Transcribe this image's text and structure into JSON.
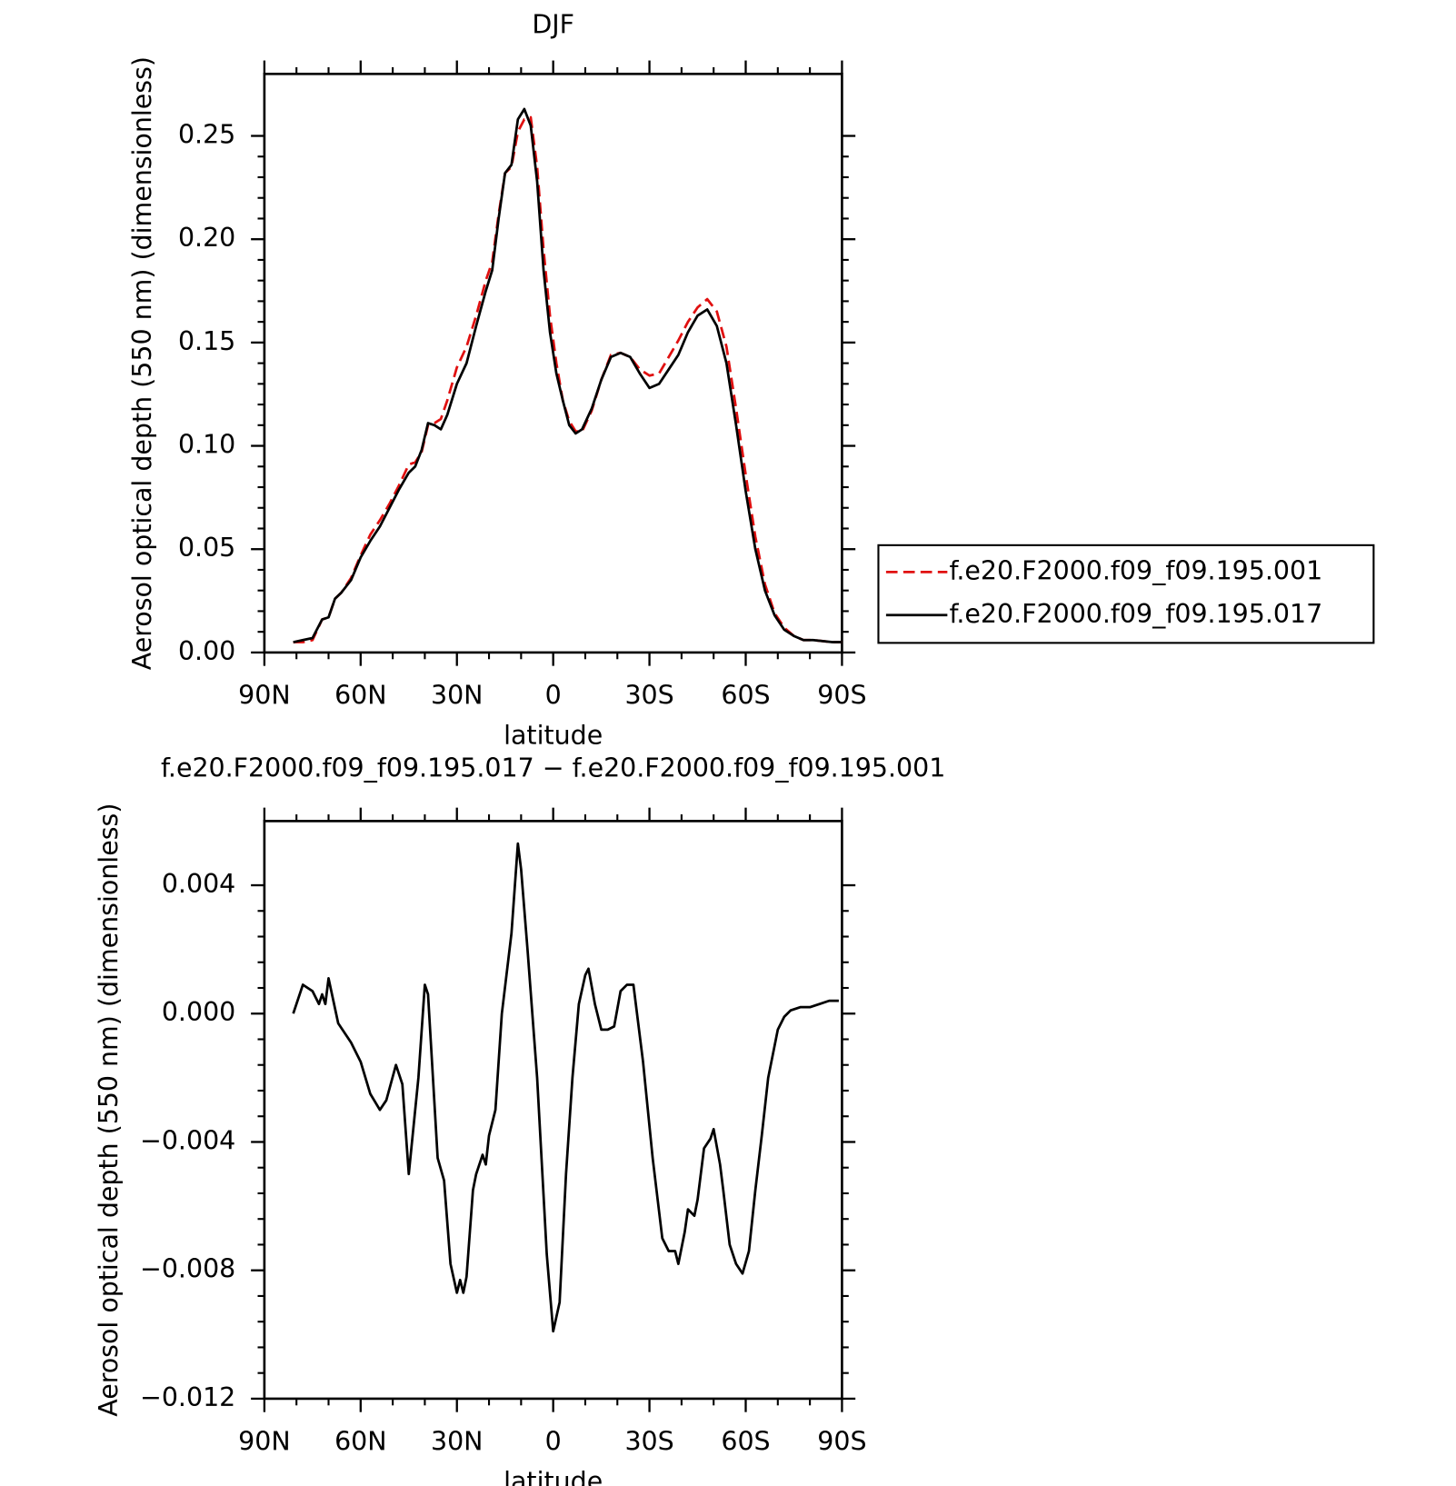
{
  "chart_data": [
    {
      "type": "line",
      "title": "DJF",
      "ylabel": "Aerosol optical depth (550 nm) (dimensionless)",
      "xlabel": "latitude",
      "xlim": [
        90,
        -90
      ],
      "xticks": [
        {
          "value": 90,
          "label": "90N"
        },
        {
          "value": 60,
          "label": "60N"
        },
        {
          "value": 30,
          "label": "30N"
        },
        0,
        {
          "value": -30,
          "label": "30S"
        },
        {
          "value": -60,
          "label": "60S"
        },
        {
          "value": -90,
          "label": "90S"
        }
      ],
      "ylim": [
        0,
        0.28
      ],
      "yticks": [
        {
          "value": 0,
          "label": "0.00"
        },
        {
          "value": 0.05,
          "label": "0.05"
        },
        {
          "value": 0.1,
          "label": "0.10"
        },
        {
          "value": 0.15,
          "label": "0.15"
        },
        {
          "value": 0.2,
          "label": "0.20"
        },
        0.25
      ],
      "legend": "right",
      "x": [
        81,
        78,
        75,
        72,
        70,
        68,
        66,
        63,
        60,
        57,
        54,
        51,
        48,
        45,
        43,
        41,
        39,
        37,
        35,
        33,
        30,
        27,
        24,
        21,
        19,
        17,
        15,
        13,
        11,
        9,
        7,
        5,
        3,
        1,
        -1,
        -3,
        -5,
        -7,
        -9,
        -12,
        -15,
        -18,
        -21,
        -24,
        -27,
        -30,
        -33,
        -36,
        -39,
        -42,
        -45,
        -48,
        -51,
        -54,
        -57,
        -60,
        -63,
        -66,
        -69,
        -72,
        -75,
        -78,
        -81,
        -84,
        -87,
        -90
      ],
      "series": [
        {
          "name": "f.e20.F2000.f09_f09.195.001",
          "color": "#e01010",
          "dash": "dashed",
          "values": [
            0.005,
            0.005,
            0.006,
            0.016,
            0.017,
            0.026,
            0.029,
            0.036,
            0.047,
            0.057,
            0.064,
            0.072,
            0.081,
            0.091,
            0.092,
            0.097,
            0.11,
            0.111,
            0.113,
            0.122,
            0.138,
            0.148,
            0.163,
            0.18,
            0.189,
            0.212,
            0.232,
            0.235,
            0.252,
            0.258,
            0.259,
            0.235,
            0.195,
            0.163,
            0.14,
            0.122,
            0.112,
            0.107,
            0.107,
            0.117,
            0.132,
            0.144,
            0.145,
            0.143,
            0.137,
            0.134,
            0.135,
            0.143,
            0.151,
            0.16,
            0.167,
            0.171,
            0.165,
            0.148,
            0.118,
            0.086,
            0.056,
            0.033,
            0.019,
            0.012,
            0.008,
            0.006,
            0.006,
            0.0055,
            0.005,
            0.005
          ]
        },
        {
          "name": "f.e20.F2000.f09_f09.195.017",
          "color": "#000000",
          "dash": "solid",
          "values": [
            0.005,
            0.006,
            0.007,
            0.016,
            0.017,
            0.026,
            0.029,
            0.035,
            0.046,
            0.054,
            0.061,
            0.07,
            0.079,
            0.087,
            0.09,
            0.098,
            0.111,
            0.11,
            0.108,
            0.115,
            0.13,
            0.14,
            0.158,
            0.175,
            0.185,
            0.21,
            0.232,
            0.236,
            0.258,
            0.263,
            0.255,
            0.228,
            0.185,
            0.155,
            0.135,
            0.122,
            0.11,
            0.106,
            0.108,
            0.118,
            0.132,
            0.143,
            0.145,
            0.143,
            0.135,
            0.128,
            0.13,
            0.137,
            0.144,
            0.155,
            0.163,
            0.166,
            0.158,
            0.14,
            0.11,
            0.078,
            0.05,
            0.03,
            0.018,
            0.011,
            0.008,
            0.006,
            0.006,
            0.0055,
            0.005,
            0.005
          ]
        }
      ]
    },
    {
      "type": "line",
      "title": "f.e20.F2000.f09_f09.195.017 − f.e20.F2000.f09_f09.195.001",
      "ylabel": "Aerosol optical depth (550 nm) (dimensionless)",
      "xlabel": "latitude",
      "xlim": [
        90,
        -90
      ],
      "xticks": [
        {
          "value": 90,
          "label": "90N"
        },
        {
          "value": 60,
          "label": "60N"
        },
        {
          "value": 30,
          "label": "30N"
        },
        0,
        {
          "value": -30,
          "label": "30S"
        },
        {
          "value": -60,
          "label": "60S"
        },
        {
          "value": -90,
          "label": "90S"
        }
      ],
      "ylim": [
        -0.012,
        0.006
      ],
      "yticks": [
        {
          "value": -0.012,
          "label": "−0.012"
        },
        {
          "value": -0.008,
          "label": "−0.008"
        },
        {
          "value": -0.004,
          "label": "−0.004"
        },
        {
          "value": 0,
          "label": "0.000"
        },
        0.004
      ],
      "x": [
        81,
        78,
        75,
        73,
        72,
        71,
        70,
        67,
        63,
        60,
        57,
        54,
        52,
        49,
        47,
        45,
        42,
        40,
        39,
        36,
        34,
        32,
        30,
        29,
        28,
        27,
        25,
        24,
        22,
        21,
        20,
        18,
        16,
        13,
        11,
        10,
        8,
        5,
        2,
        0,
        -2,
        -4,
        -6,
        -8,
        -10,
        -11,
        -13,
        -15,
        -17,
        -19,
        -21,
        -23,
        -25,
        -28,
        -31,
        -34,
        -36,
        -38,
        -39,
        -41,
        -42,
        -44,
        -45,
        -47,
        -49,
        -50,
        -52,
        -53,
        -55,
        -57,
        -59,
        -61,
        -63,
        -65,
        -67,
        -70,
        -72,
        -74,
        -77,
        -80,
        -83,
        -86,
        -89
      ],
      "color": "#000000",
      "values": [
        0,
        0.0009,
        0.0007,
        0.0003,
        0.0006,
        0.0003,
        0.0011,
        -0.0003,
        -0.0009,
        -0.0015,
        -0.0025,
        -0.003,
        -0.0027,
        -0.0016,
        -0.0022,
        -0.005,
        -0.002,
        0.0009,
        0.0006,
        -0.0045,
        -0.0052,
        -0.0078,
        -0.0087,
        -0.0083,
        -0.0087,
        -0.0082,
        -0.0055,
        -0.005,
        -0.0044,
        -0.0047,
        -0.0038,
        -0.003,
        0,
        0.0025,
        0.0053,
        0.0045,
        0.002,
        -0.002,
        -0.0075,
        -0.0099,
        -0.009,
        -0.005,
        -0.002,
        0.0003,
        0.0012,
        0.0014,
        0.0003,
        -0.0005,
        -0.0005,
        -0.0004,
        0.0007,
        0.0009,
        0.0009,
        -0.0015,
        -0.0045,
        -0.007,
        -0.0074,
        -0.0074,
        -0.0078,
        -0.0068,
        -0.0061,
        -0.0063,
        -0.0058,
        -0.0042,
        -0.0039,
        -0.0036,
        -0.0047,
        -0.0055,
        -0.0072,
        -0.0078,
        -0.0081,
        -0.0074,
        -0.0055,
        -0.0038,
        -0.002,
        -0.0005,
        -0.0001,
        0.0001,
        0.0002,
        0.0002,
        0.0003,
        0.0004,
        0.0004
      ]
    }
  ]
}
